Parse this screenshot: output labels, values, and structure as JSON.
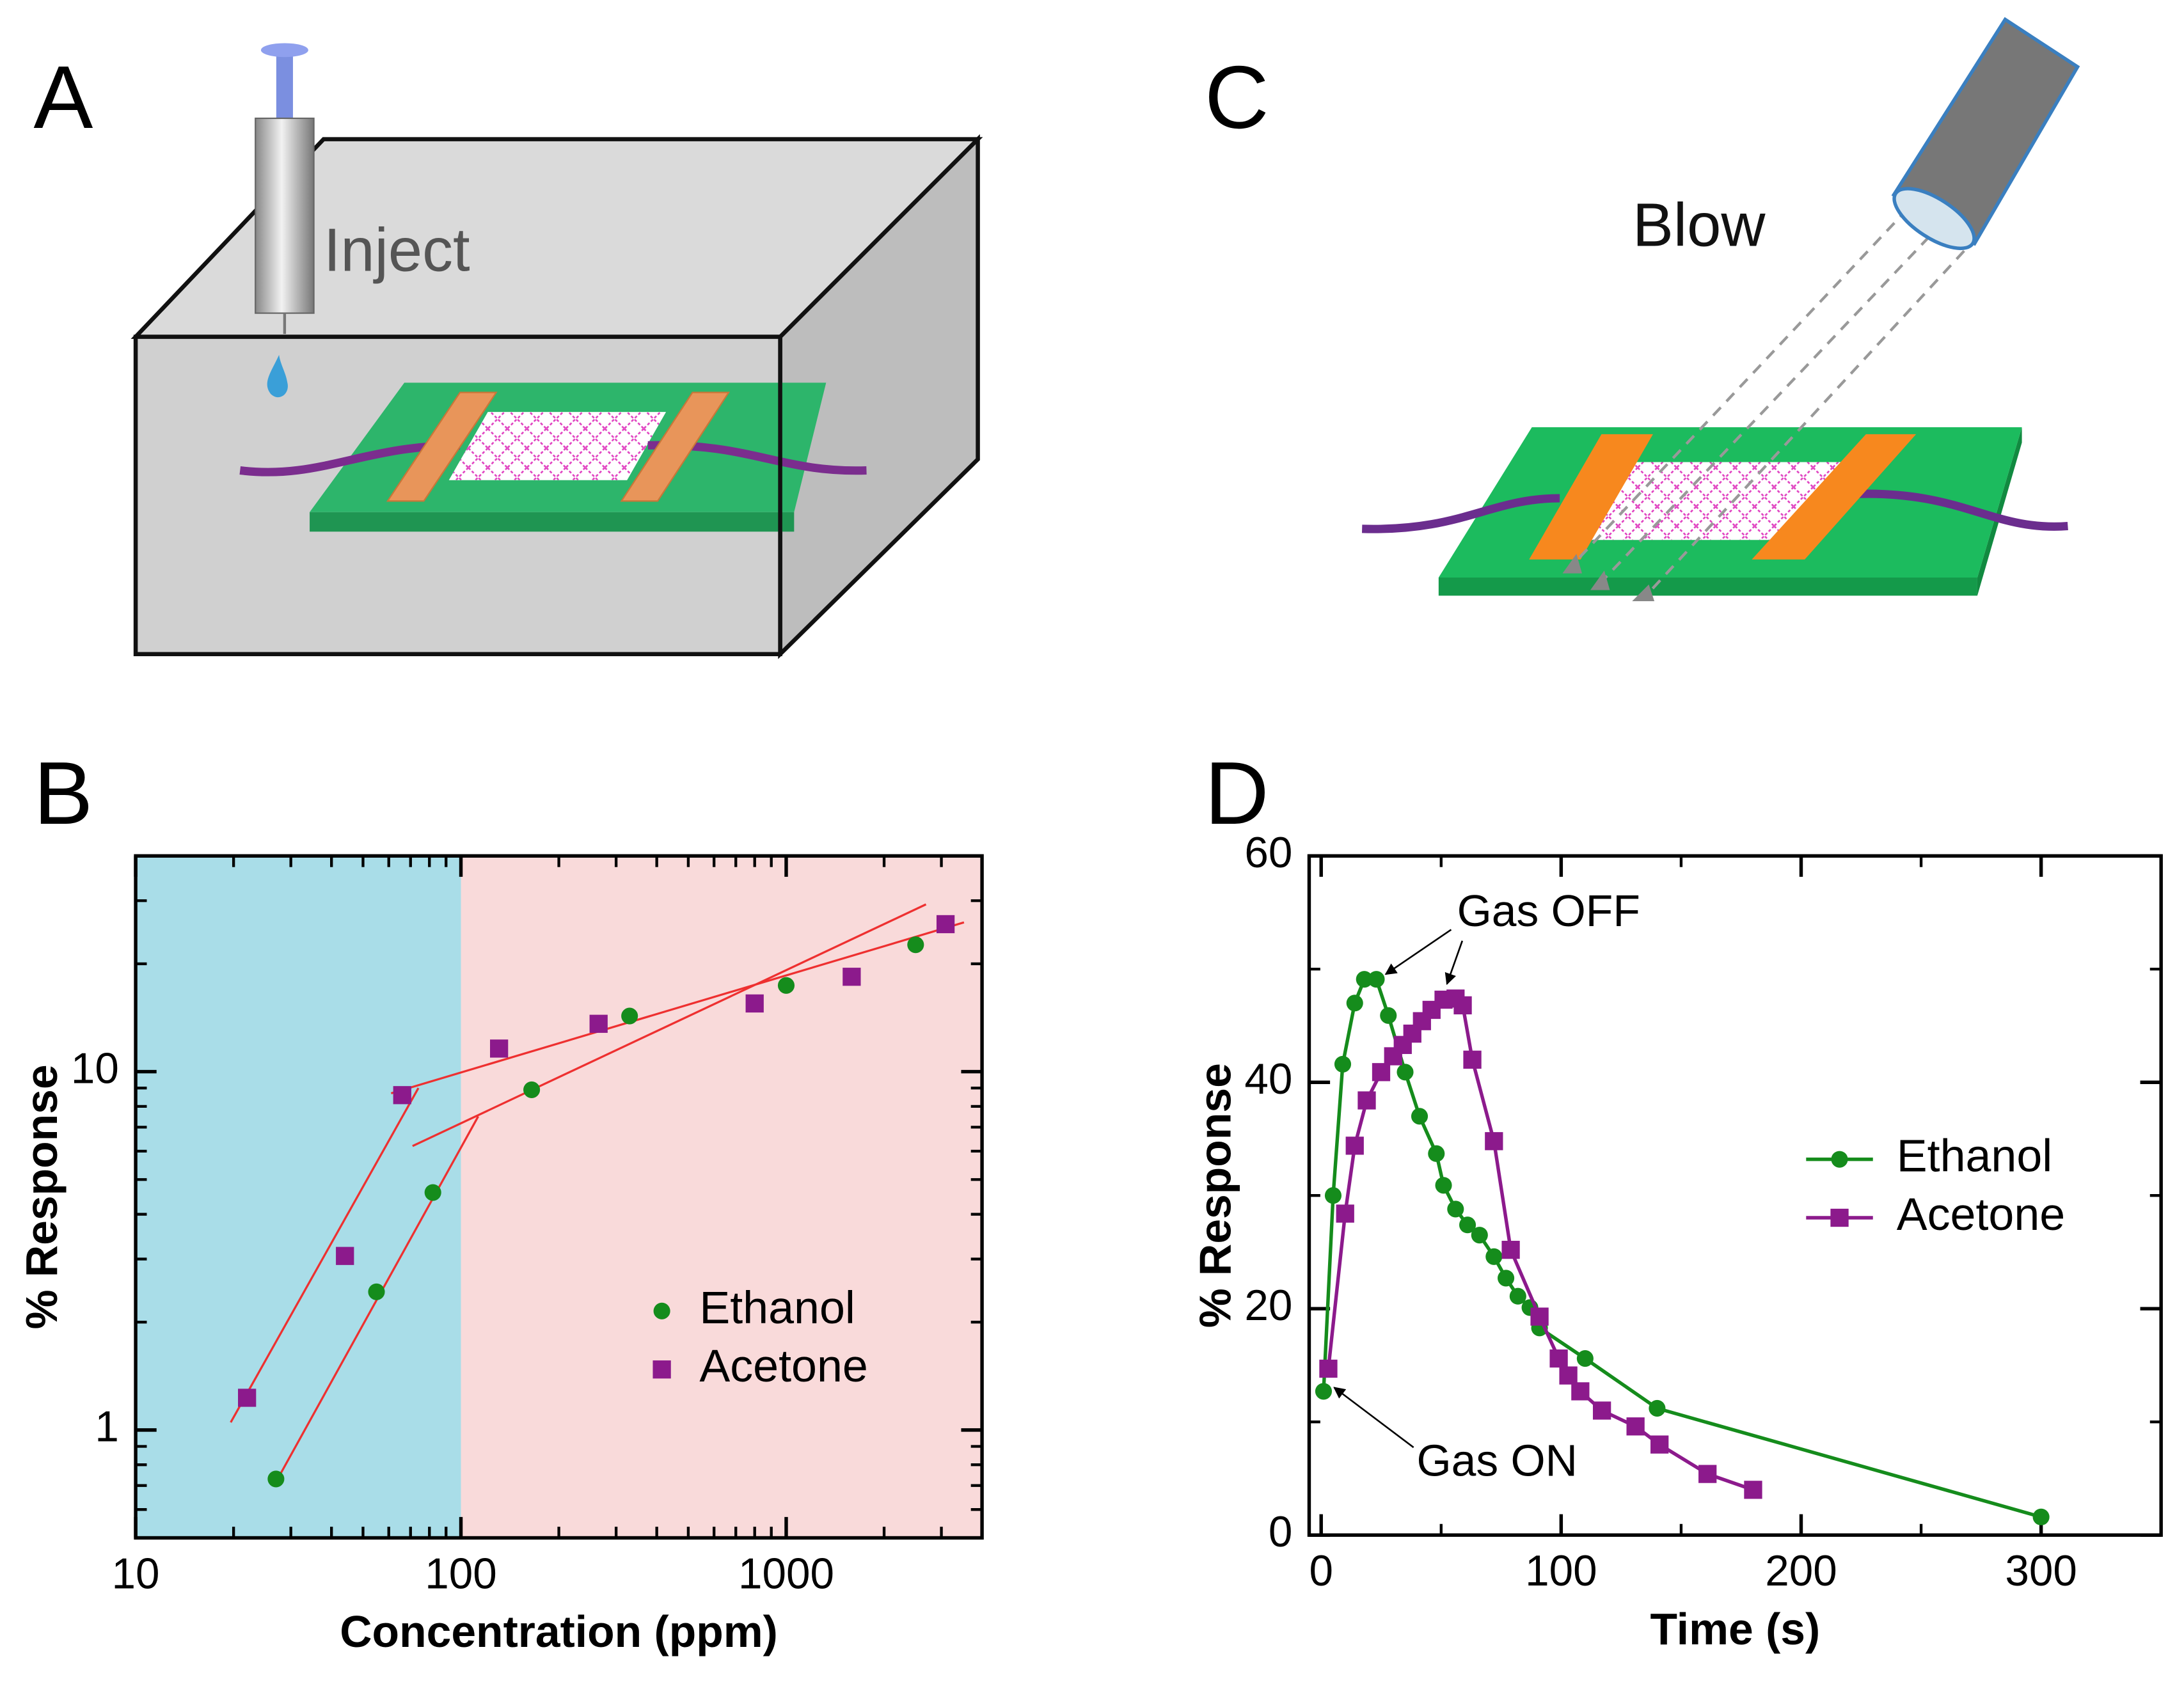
{
  "panel_labels": [
    "A",
    "B",
    "C",
    "D"
  ],
  "diagrams": {
    "A": {
      "label": "Inject"
    },
    "C": {
      "label": "Blow"
    }
  },
  "chart_data": [
    {
      "type": "scatter",
      "x_label": "Concentration (ppm)",
      "y_label": "% Response",
      "xscale": "log",
      "yscale": "log",
      "xlim": [
        10,
        4000
      ],
      "ylim": [
        0.5,
        40
      ],
      "xticks": [
        10,
        100,
        1000
      ],
      "yticks": [
        1,
        10
      ],
      "minor_ticks": true,
      "legend": "lower right",
      "regions": [
        {
          "xlim": [
            10,
            100
          ],
          "color": "#a9dde8"
        },
        {
          "xlim": [
            100,
            4000
          ],
          "color": "#f9dada"
        }
      ],
      "series": [
        {
          "name": "Ethanol",
          "color": "#158c1c",
          "marker": "circle",
          "x": [
            27,
            55,
            82,
            165,
            330,
            1000,
            2500
          ],
          "values": [
            0.73,
            2.43,
            4.6,
            8.9,
            14.3,
            17.4,
            22.6
          ]
        },
        {
          "name": "Acetone",
          "color": "#8c1a8c",
          "marker": "square",
          "x": [
            22,
            44,
            66,
            131,
            265,
            800,
            1590,
            3090
          ],
          "values": [
            1.23,
            3.06,
            8.6,
            11.6,
            13.6,
            15.5,
            18.4,
            25.8
          ]
        }
      ],
      "fit_lines": [
        {
          "color": "#ee3030",
          "x": [
            19.6,
            74
          ],
          "values": [
            1.05,
            9.0
          ]
        },
        {
          "color": "#ee3030",
          "x": [
            61,
            3520
          ],
          "values": [
            8.7,
            26.1
          ]
        },
        {
          "color": "#ee3030",
          "x": [
            28,
            113
          ],
          "values": [
            0.76,
            7.5
          ]
        },
        {
          "color": "#ee3030",
          "x": [
            71,
            2690
          ],
          "values": [
            6.2,
            29.3
          ]
        }
      ]
    },
    {
      "type": "line",
      "x_label": "Time (s)",
      "y_label": "% Response",
      "xlim": [
        -5,
        350
      ],
      "ylim": [
        0,
        60
      ],
      "xticks": [
        0,
        100,
        200,
        300
      ],
      "yticks": [
        0,
        20,
        40,
        60
      ],
      "minor_ticks": true,
      "legend": "center right",
      "annotations": [
        {
          "text": "Gas OFF"
        },
        {
          "text": "Gas ON"
        }
      ],
      "series": [
        {
          "name": "Ethanol",
          "color": "#158c1c",
          "marker": "circle",
          "x": [
            1,
            5,
            9,
            14,
            18,
            23,
            28,
            35,
            41,
            48,
            51,
            56,
            61,
            66,
            72,
            77,
            82,
            87,
            91,
            110,
            140,
            300
          ],
          "values": [
            12.7,
            30.0,
            41.6,
            47.0,
            49.1,
            49.1,
            45.9,
            40.9,
            37.0,
            33.7,
            30.9,
            28.8,
            27.4,
            26.5,
            24.6,
            22.7,
            21.1,
            20.1,
            18.3,
            15.6,
            11.2,
            1.6
          ]
        },
        {
          "name": "Acetone",
          "color": "#8c1a8c",
          "marker": "square",
          "x": [
            3,
            10,
            14,
            19,
            25,
            30,
            34,
            38,
            42,
            46,
            51,
            56,
            59,
            63,
            72,
            79,
            91,
            99,
            103,
            108,
            117,
            131,
            141,
            161,
            180
          ],
          "values": [
            14.7,
            28.4,
            34.4,
            38.4,
            40.9,
            42.3,
            43.3,
            44.3,
            45.4,
            46.4,
            47.3,
            47.4,
            46.8,
            42.0,
            34.8,
            25.2,
            19.3,
            15.6,
            14.1,
            12.7,
            11.0,
            9.6,
            8.0,
            5.4,
            4.0
          ]
        }
      ]
    }
  ]
}
